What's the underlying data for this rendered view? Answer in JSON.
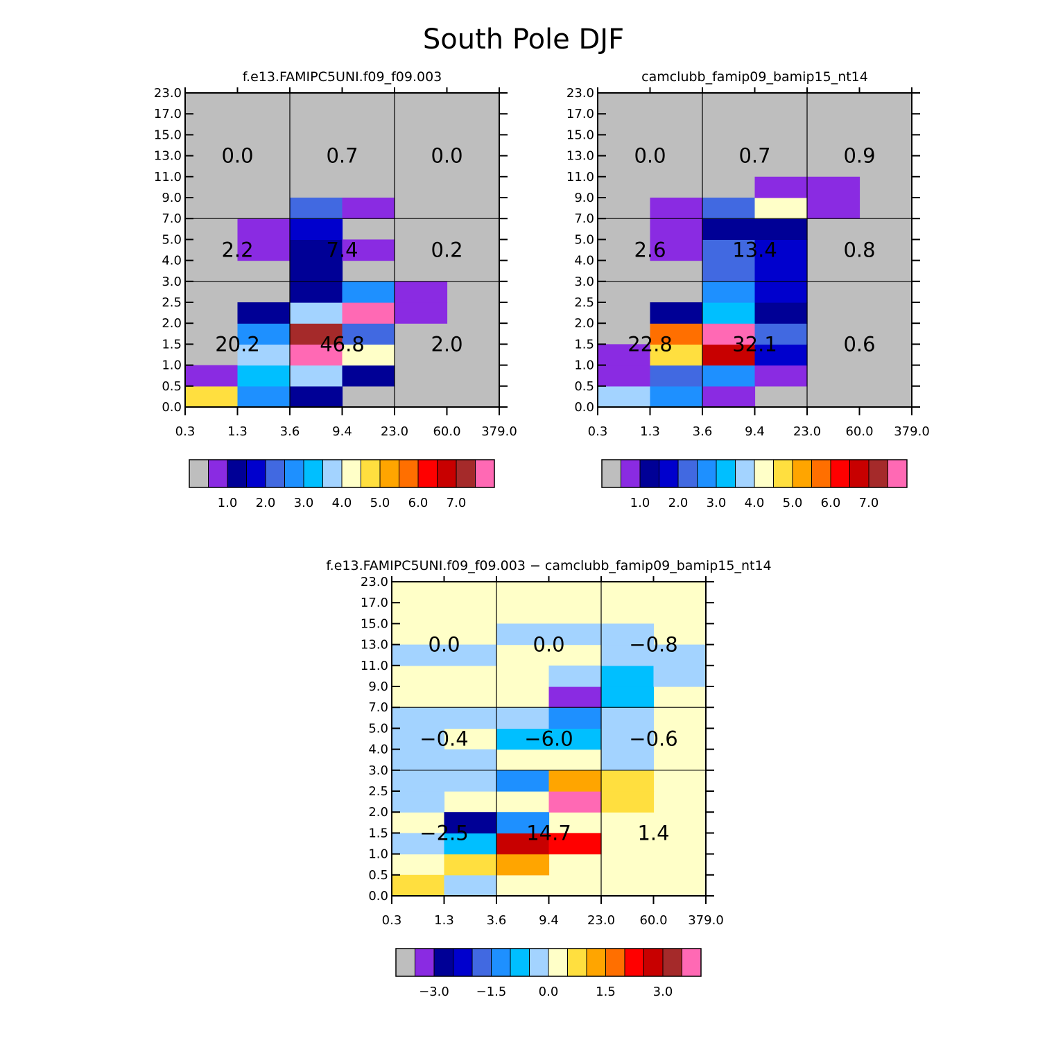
{
  "figure_title": "South Pole DJF",
  "chart_data": [
    {
      "type": "heatmap",
      "title": "f.e13.FAMIPC5UNI.f09_f09.003",
      "x_ticks": [
        "0.3",
        "1.3",
        "3.6",
        "9.4",
        "23.0",
        "60.0",
        "379.0"
      ],
      "y_ticks": [
        "0.0",
        "0.5",
        "1.0",
        "1.5",
        "2.0",
        "2.5",
        "3.0",
        "4.0",
        "5.0",
        "7.0",
        "9.0",
        "11.0",
        "13.0",
        "15.0",
        "17.0",
        "23.0"
      ],
      "background_color": "#bebebe",
      "cells": [
        {
          "col": 0,
          "row": 0,
          "color": "#ffdf3f"
        },
        {
          "col": 0,
          "row": 1,
          "color": "#8a2be2"
        },
        {
          "col": 1,
          "row": 0,
          "color": "#1e90ff"
        },
        {
          "col": 1,
          "row": 1,
          "color": "#00bfff"
        },
        {
          "col": 1,
          "row": 2,
          "color": "#a3d3ff"
        },
        {
          "col": 1,
          "row": 3,
          "color": "#1e90ff"
        },
        {
          "col": 1,
          "row": 4,
          "color": "#000096"
        },
        {
          "col": 1,
          "row": 7,
          "color": "#8a2be2"
        },
        {
          "col": 1,
          "row": 8,
          "color": "#8a2be2"
        },
        {
          "col": 2,
          "row": 0,
          "color": "#000096"
        },
        {
          "col": 2,
          "row": 1,
          "color": "#a3d3ff"
        },
        {
          "col": 2,
          "row": 2,
          "color": "#ff69b4"
        },
        {
          "col": 2,
          "row": 3,
          "color": "#a52a2a"
        },
        {
          "col": 2,
          "row": 4,
          "color": "#a3d3ff"
        },
        {
          "col": 2,
          "row": 5,
          "color": "#000096"
        },
        {
          "col": 2,
          "row": 6,
          "color": "#000096"
        },
        {
          "col": 2,
          "row": 7,
          "color": "#000096"
        },
        {
          "col": 2,
          "row": 8,
          "color": "#0000cd"
        },
        {
          "col": 2,
          "row": 9,
          "color": "#4169e1"
        },
        {
          "col": 3,
          "row": 1,
          "color": "#000096"
        },
        {
          "col": 3,
          "row": 2,
          "color": "#ffffc8"
        },
        {
          "col": 3,
          "row": 3,
          "color": "#4169e1"
        },
        {
          "col": 3,
          "row": 4,
          "color": "#ff69b4"
        },
        {
          "col": 3,
          "row": 5,
          "color": "#1e90ff"
        },
        {
          "col": 3,
          "row": 7,
          "color": "#8a2be2"
        },
        {
          "col": 3,
          "row": 9,
          "color": "#8a2be2"
        },
        {
          "col": 4,
          "row": 4,
          "color": "#8a2be2"
        },
        {
          "col": 4,
          "row": 5,
          "color": "#8a2be2"
        }
      ],
      "block_labels": [
        {
          "block_col": 0,
          "block_row": 0,
          "text": "20.2"
        },
        {
          "block_col": 1,
          "block_row": 0,
          "text": "46.8"
        },
        {
          "block_col": 2,
          "block_row": 0,
          "text": "2.0"
        },
        {
          "block_col": 0,
          "block_row": 1,
          "text": "2.2"
        },
        {
          "block_col": 1,
          "block_row": 1,
          "text": "7.4"
        },
        {
          "block_col": 2,
          "block_row": 1,
          "text": "0.2"
        },
        {
          "block_col": 0,
          "block_row": 2,
          "text": "0.0"
        },
        {
          "block_col": 1,
          "block_row": 2,
          "text": "0.7"
        },
        {
          "block_col": 2,
          "block_row": 2,
          "text": "0.0"
        }
      ],
      "colorbar": {
        "colors": [
          "#bebebe",
          "#8a2be2",
          "#000096",
          "#0000cd",
          "#4169e1",
          "#1e90ff",
          "#00bfff",
          "#a3d3ff",
          "#ffffc8",
          "#ffdf3f",
          "#ffa500",
          "#ff6f00",
          "#ff0000",
          "#c80000",
          "#a52a2a",
          "#ff69b4"
        ],
        "labels": [
          "1.0",
          "2.0",
          "3.0",
          "4.0",
          "5.0",
          "6.0",
          "7.0"
        ]
      }
    },
    {
      "type": "heatmap",
      "title": "camclubb_famip09_bamip15_nt14",
      "x_ticks": [
        "0.3",
        "1.3",
        "3.6",
        "9.4",
        "23.0",
        "60.0",
        "379.0"
      ],
      "y_ticks": [
        "0.0",
        "0.5",
        "1.0",
        "1.5",
        "2.0",
        "2.5",
        "3.0",
        "4.0",
        "5.0",
        "7.0",
        "9.0",
        "11.0",
        "13.0",
        "15.0",
        "17.0",
        "23.0"
      ],
      "background_color": "#bebebe",
      "cells": [
        {
          "col": 0,
          "row": 0,
          "color": "#a3d3ff"
        },
        {
          "col": 0,
          "row": 1,
          "color": "#8a2be2"
        },
        {
          "col": 0,
          "row": 2,
          "color": "#8a2be2"
        },
        {
          "col": 1,
          "row": 0,
          "color": "#1e90ff"
        },
        {
          "col": 1,
          "row": 1,
          "color": "#4169e1"
        },
        {
          "col": 1,
          "row": 2,
          "color": "#ffdf3f"
        },
        {
          "col": 1,
          "row": 3,
          "color": "#ff6f00"
        },
        {
          "col": 1,
          "row": 4,
          "color": "#000096"
        },
        {
          "col": 1,
          "row": 7,
          "color": "#8a2be2"
        },
        {
          "col": 1,
          "row": 8,
          "color": "#8a2be2"
        },
        {
          "col": 1,
          "row": 9,
          "color": "#8a2be2"
        },
        {
          "col": 2,
          "row": 0,
          "color": "#8a2be2"
        },
        {
          "col": 2,
          "row": 1,
          "color": "#1e90ff"
        },
        {
          "col": 2,
          "row": 2,
          "color": "#c80000"
        },
        {
          "col": 2,
          "row": 3,
          "color": "#ff69b4"
        },
        {
          "col": 2,
          "row": 4,
          "color": "#00bfff"
        },
        {
          "col": 2,
          "row": 5,
          "color": "#1e90ff"
        },
        {
          "col": 2,
          "row": 6,
          "color": "#4169e1"
        },
        {
          "col": 2,
          "row": 7,
          "color": "#4169e1"
        },
        {
          "col": 2,
          "row": 8,
          "color": "#000096"
        },
        {
          "col": 2,
          "row": 9,
          "color": "#4169e1"
        },
        {
          "col": 3,
          "row": 1,
          "color": "#8a2be2"
        },
        {
          "col": 3,
          "row": 2,
          "color": "#0000cd"
        },
        {
          "col": 3,
          "row": 3,
          "color": "#4169e1"
        },
        {
          "col": 3,
          "row": 4,
          "color": "#000096"
        },
        {
          "col": 3,
          "row": 5,
          "color": "#0000cd"
        },
        {
          "col": 3,
          "row": 6,
          "color": "#0000cd"
        },
        {
          "col": 3,
          "row": 7,
          "color": "#0000cd"
        },
        {
          "col": 3,
          "row": 8,
          "color": "#000096"
        },
        {
          "col": 3,
          "row": 9,
          "color": "#ffffc8"
        },
        {
          "col": 3,
          "row": 10,
          "color": "#8a2be2"
        },
        {
          "col": 4,
          "row": 9,
          "color": "#8a2be2"
        },
        {
          "col": 4,
          "row": 10,
          "color": "#8a2be2"
        }
      ],
      "block_labels": [
        {
          "block_col": 0,
          "block_row": 0,
          "text": "22.8"
        },
        {
          "block_col": 1,
          "block_row": 0,
          "text": "32.1"
        },
        {
          "block_col": 2,
          "block_row": 0,
          "text": "0.6"
        },
        {
          "block_col": 0,
          "block_row": 1,
          "text": "2.6"
        },
        {
          "block_col": 1,
          "block_row": 1,
          "text": "13.4"
        },
        {
          "block_col": 2,
          "block_row": 1,
          "text": "0.8"
        },
        {
          "block_col": 0,
          "block_row": 2,
          "text": "0.0"
        },
        {
          "block_col": 1,
          "block_row": 2,
          "text": "0.7"
        },
        {
          "block_col": 2,
          "block_row": 2,
          "text": "0.9"
        }
      ],
      "colorbar": {
        "colors": [
          "#bebebe",
          "#8a2be2",
          "#000096",
          "#0000cd",
          "#4169e1",
          "#1e90ff",
          "#00bfff",
          "#a3d3ff",
          "#ffffc8",
          "#ffdf3f",
          "#ffa500",
          "#ff6f00",
          "#ff0000",
          "#c80000",
          "#a52a2a",
          "#ff69b4"
        ],
        "labels": [
          "1.0",
          "2.0",
          "3.0",
          "4.0",
          "5.0",
          "6.0",
          "7.0"
        ]
      }
    },
    {
      "type": "heatmap",
      "title": "f.e13.FAMIPC5UNI.f09_f09.003 − camclubb_famip09_bamip15_nt14",
      "x_ticks": [
        "0.3",
        "1.3",
        "3.6",
        "9.4",
        "23.0",
        "60.0",
        "379.0"
      ],
      "y_ticks": [
        "0.0",
        "0.5",
        "1.0",
        "1.5",
        "2.0",
        "2.5",
        "3.0",
        "4.0",
        "5.0",
        "7.0",
        "9.0",
        "11.0",
        "13.0",
        "15.0",
        "17.0",
        "23.0"
      ],
      "background_color": "#ffffc8",
      "cells": [
        {
          "col": 0,
          "row": 0,
          "color": "#ffdf3f"
        },
        {
          "col": 0,
          "row": 2,
          "color": "#a3d3ff"
        },
        {
          "col": 0,
          "row": 4,
          "color": "#a3d3ff"
        },
        {
          "col": 0,
          "row": 5,
          "color": "#a3d3ff"
        },
        {
          "col": 0,
          "row": 6,
          "color": "#a3d3ff"
        },
        {
          "col": 0,
          "row": 7,
          "color": "#a3d3ff"
        },
        {
          "col": 0,
          "row": 8,
          "color": "#a3d3ff"
        },
        {
          "col": 0,
          "row": 11,
          "color": "#a3d3ff"
        },
        {
          "col": 1,
          "row": 0,
          "color": "#a3d3ff"
        },
        {
          "col": 1,
          "row": 1,
          "color": "#ffdf3f"
        },
        {
          "col": 1,
          "row": 2,
          "color": "#00bfff"
        },
        {
          "col": 1,
          "row": 3,
          "color": "#000096"
        },
        {
          "col": 1,
          "row": 5,
          "color": "#a3d3ff"
        },
        {
          "col": 1,
          "row": 6,
          "color": "#a3d3ff"
        },
        {
          "col": 1,
          "row": 8,
          "color": "#a3d3ff"
        },
        {
          "col": 1,
          "row": 11,
          "color": "#a3d3ff"
        },
        {
          "col": 2,
          "row": 1,
          "color": "#ffa500"
        },
        {
          "col": 2,
          "row": 2,
          "color": "#c80000"
        },
        {
          "col": 2,
          "row": 3,
          "color": "#1e90ff"
        },
        {
          "col": 2,
          "row": 5,
          "color": "#1e90ff"
        },
        {
          "col": 2,
          "row": 7,
          "color": "#00bfff"
        },
        {
          "col": 2,
          "row": 8,
          "color": "#a3d3ff"
        },
        {
          "col": 2,
          "row": 12,
          "color": "#a3d3ff"
        },
        {
          "col": 3,
          "row": 2,
          "color": "#ff0000"
        },
        {
          "col": 3,
          "row": 4,
          "color": "#ff69b4"
        },
        {
          "col": 3,
          "row": 5,
          "color": "#ffa500"
        },
        {
          "col": 3,
          "row": 7,
          "color": "#00bfff"
        },
        {
          "col": 3,
          "row": 8,
          "color": "#1e90ff"
        },
        {
          "col": 3,
          "row": 9,
          "color": "#8a2be2"
        },
        {
          "col": 3,
          "row": 10,
          "color": "#a3d3ff"
        },
        {
          "col": 3,
          "row": 12,
          "color": "#a3d3ff"
        },
        {
          "col": 4,
          "row": 4,
          "color": "#ffdf3f"
        },
        {
          "col": 4,
          "row": 5,
          "color": "#ffdf3f"
        },
        {
          "col": 4,
          "row": 6,
          "color": "#a3d3ff"
        },
        {
          "col": 4,
          "row": 7,
          "color": "#a3d3ff"
        },
        {
          "col": 4,
          "row": 8,
          "color": "#a3d3ff"
        },
        {
          "col": 4,
          "row": 9,
          "color": "#00bfff"
        },
        {
          "col": 4,
          "row": 10,
          "color": "#00bfff"
        },
        {
          "col": 4,
          "row": 11,
          "color": "#a3d3ff"
        },
        {
          "col": 4,
          "row": 12,
          "color": "#a3d3ff"
        },
        {
          "col": 5,
          "row": 10,
          "color": "#a3d3ff"
        },
        {
          "col": 5,
          "row": 11,
          "color": "#a3d3ff"
        }
      ],
      "block_labels": [
        {
          "block_col": 0,
          "block_row": 0,
          "text": "−2.5"
        },
        {
          "block_col": 1,
          "block_row": 0,
          "text": "14.7"
        },
        {
          "block_col": 2,
          "block_row": 0,
          "text": "1.4"
        },
        {
          "block_col": 0,
          "block_row": 1,
          "text": "−0.4"
        },
        {
          "block_col": 1,
          "block_row": 1,
          "text": "−6.0"
        },
        {
          "block_col": 2,
          "block_row": 1,
          "text": "−0.6"
        },
        {
          "block_col": 0,
          "block_row": 2,
          "text": "0.0"
        },
        {
          "block_col": 1,
          "block_row": 2,
          "text": "0.0"
        },
        {
          "block_col": 2,
          "block_row": 2,
          "text": "−0.8"
        }
      ],
      "colorbar": {
        "colors": [
          "#bebebe",
          "#8a2be2",
          "#000096",
          "#0000cd",
          "#4169e1",
          "#1e90ff",
          "#00bfff",
          "#a3d3ff",
          "#ffffc8",
          "#ffdf3f",
          "#ffa500",
          "#ff6f00",
          "#ff0000",
          "#c80000",
          "#a52a2a",
          "#ff69b4"
        ],
        "labels": [
          "−3.0",
          "−1.5",
          "0.0",
          "1.5",
          "3.0"
        ]
      }
    }
  ]
}
